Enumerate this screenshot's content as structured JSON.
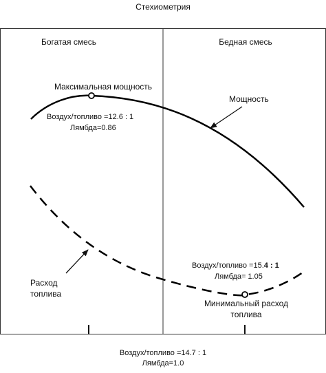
{
  "diagram": {
    "title": "Стехиометрия",
    "regions": {
      "rich": "Богатая смесь",
      "lean": "Бедная смесь"
    },
    "power_peak": {
      "label": "Максимальная мощность",
      "ratio": "Воздух/топливо =12.6 : 1",
      "lambda": "Лямбда=0.86"
    },
    "power_curve_label": "Мощность",
    "fuel_curve_label": [
      "Расход",
      "топлива"
    ],
    "fuel_min": {
      "ratio_prefix": "Воздух/топливо =15.",
      "ratio_bold": "4 : 1",
      "lambda": "Лямбда= 1.05",
      "label": [
        "Минимальный расход",
        "топлива"
      ]
    },
    "stoich": {
      "ratio": "Воздух/топливо =14.7 : 1",
      "lambda": "Лямбда=1.0"
    }
  }
}
